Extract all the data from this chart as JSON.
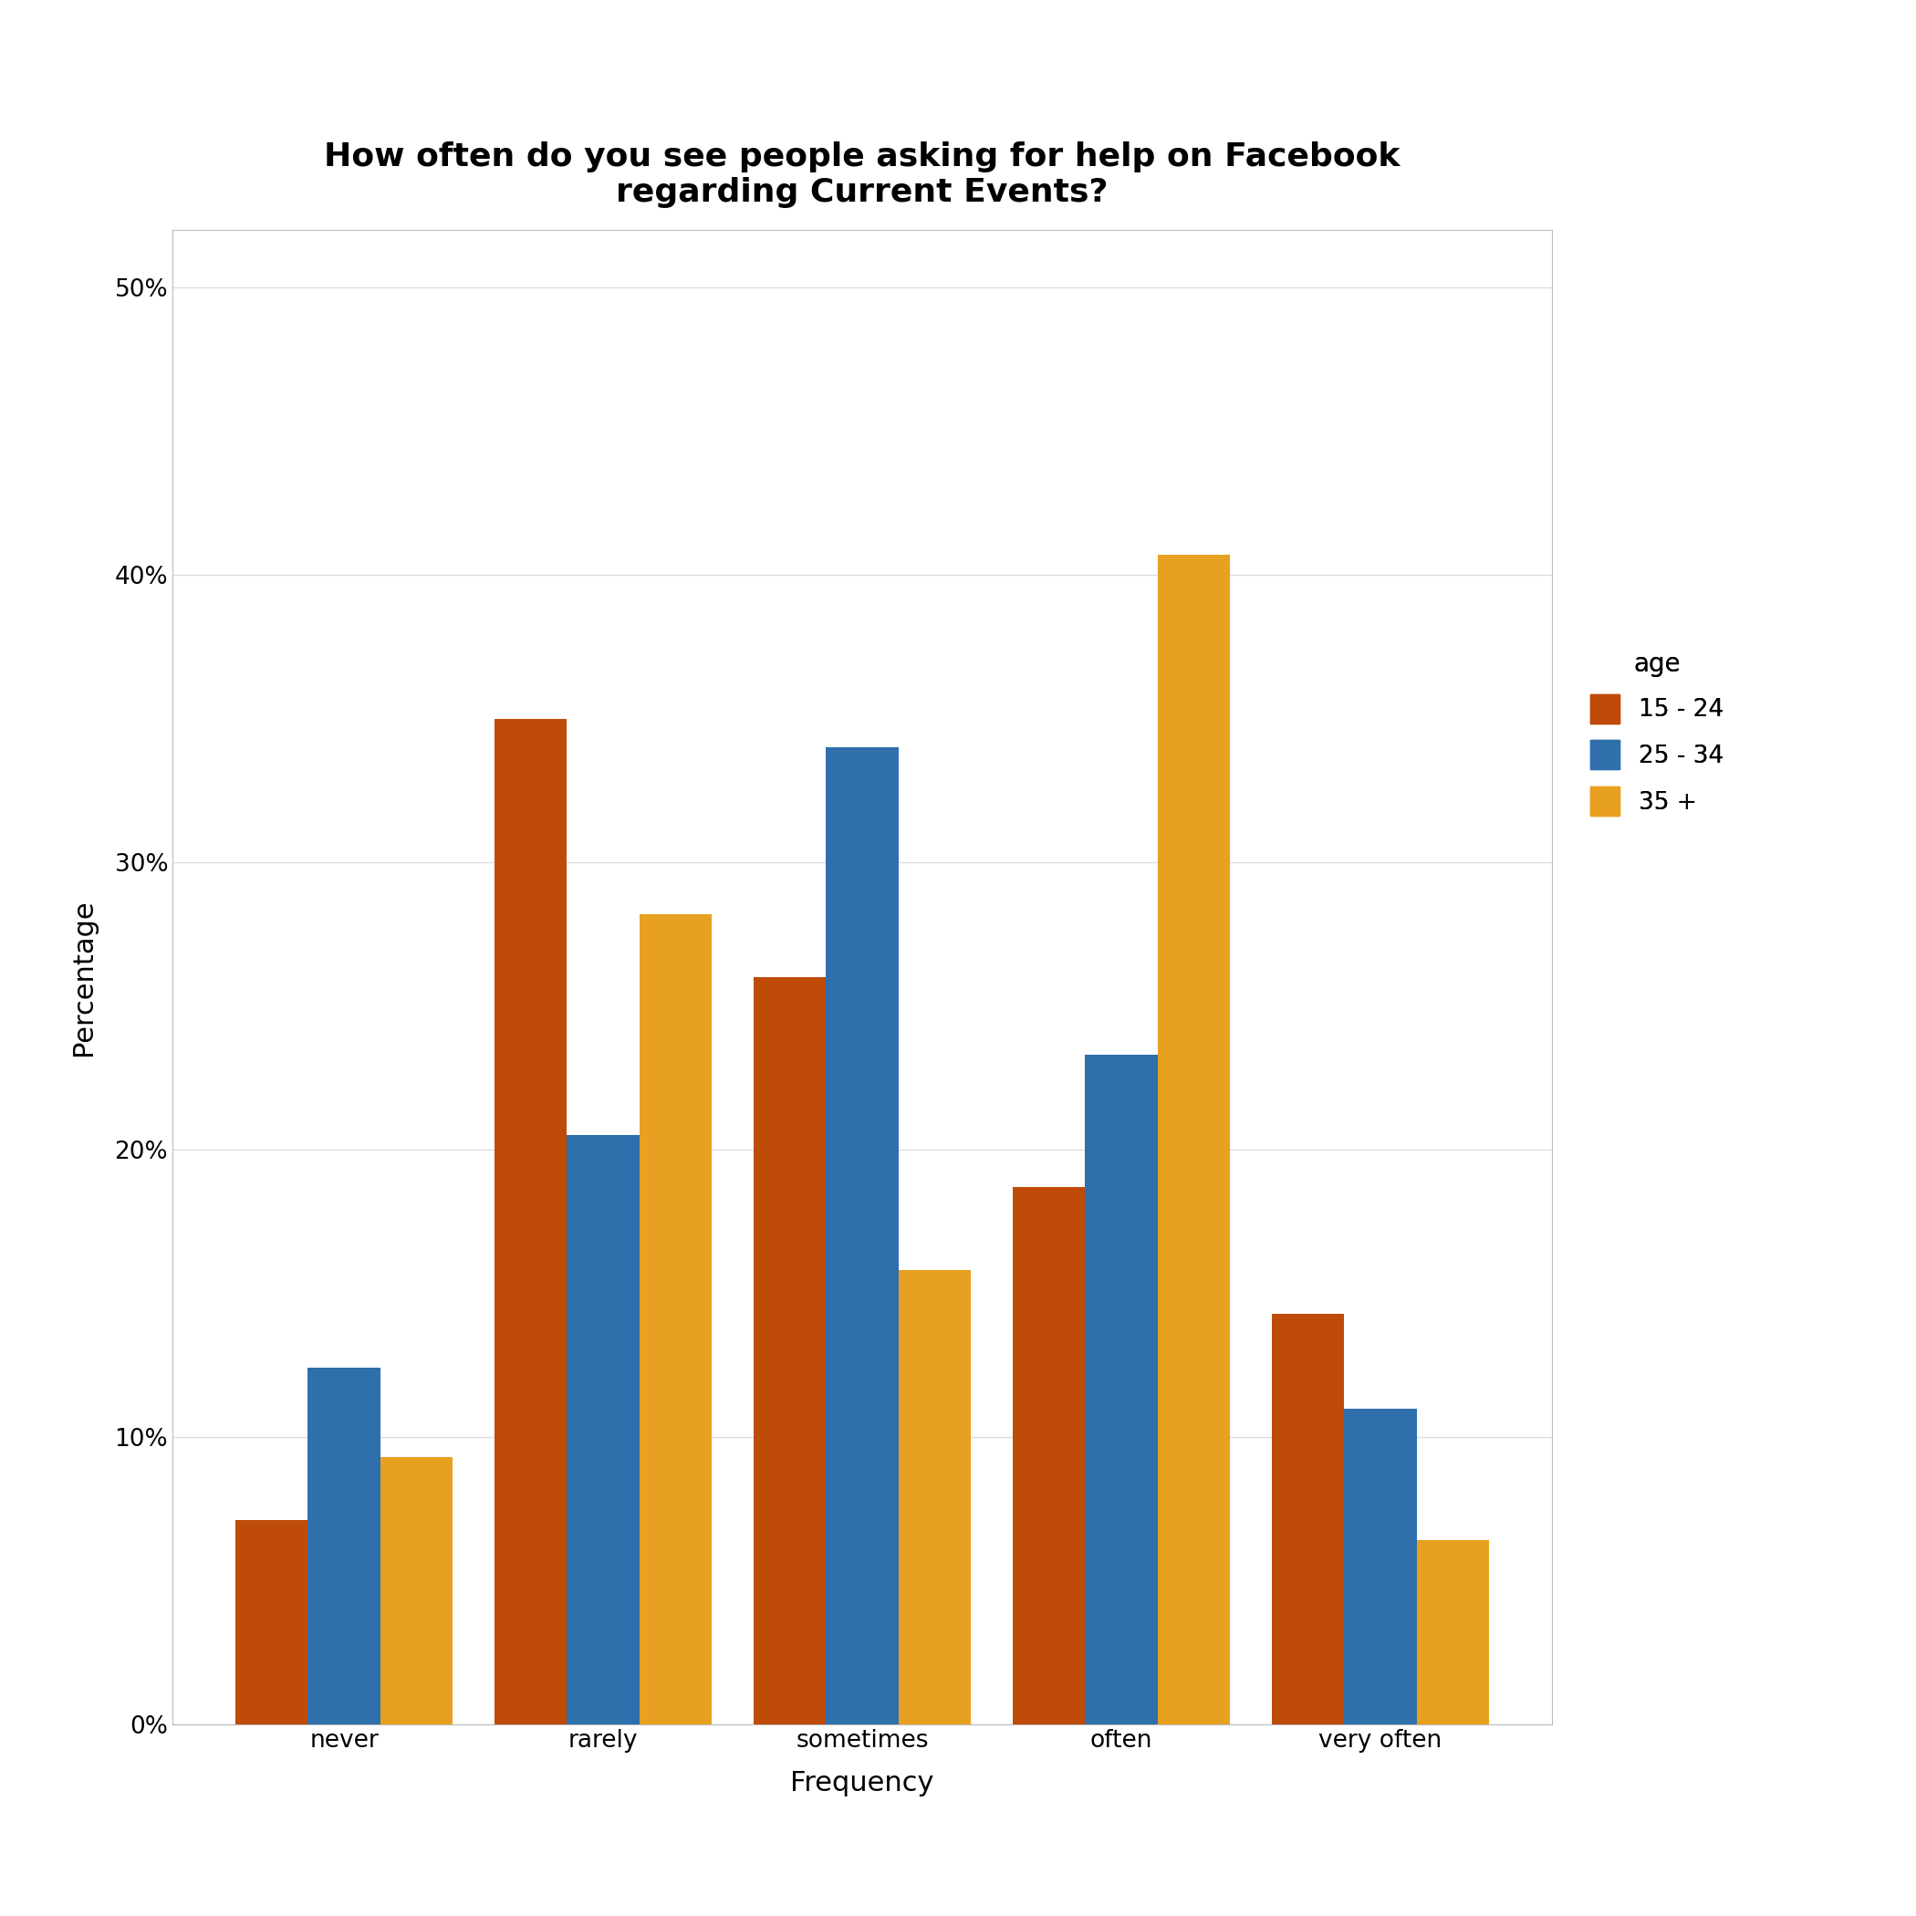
{
  "title": "How often do you see people asking for help on Facebook\nregarding Current Events?",
  "xlabel": "Frequency",
  "ylabel": "Percentage",
  "categories": [
    "never",
    "rarely",
    "sometimes",
    "often",
    "very often"
  ],
  "age_groups": [
    "15 - 24",
    "25 - 34",
    "35 +"
  ],
  "values": {
    "15 - 24": [
      7.1,
      35.0,
      26.0,
      18.7,
      14.3
    ],
    "25 - 34": [
      12.4,
      20.5,
      34.0,
      23.3,
      11.0
    ],
    "35 +": [
      9.3,
      28.2,
      15.8,
      40.7,
      6.4
    ]
  },
  "colors": {
    "15 - 24": "#BE4B08",
    "25 - 34": "#2E6FAC",
    "35 +": "#E8A020"
  },
  "ylim": [
    0,
    52
  ],
  "yticks": [
    0,
    10,
    20,
    30,
    40,
    50
  ],
  "ytick_labels": [
    "0%",
    "10%",
    "20%",
    "30%",
    "40%",
    "50%"
  ],
  "background_color": "#FFFFFF",
  "panel_color": "#FFFFFF",
  "grid_color": "#DDDDDD",
  "title_fontsize": 26,
  "axis_label_fontsize": 22,
  "tick_fontsize": 19,
  "legend_fontsize": 19,
  "legend_title_fontsize": 20,
  "bar_width": 0.28
}
